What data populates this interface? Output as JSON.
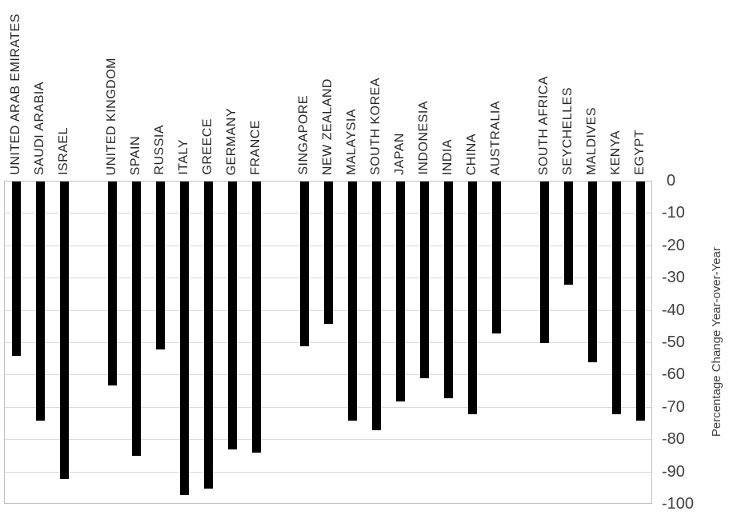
{
  "chart_data": {
    "type": "bar",
    "bar_direction": "vertical-negative",
    "title": "",
    "xlabel": "",
    "ylabel": "Percentage Change Year-over-Year",
    "ylim": [
      -100,
      0
    ],
    "yticks": [
      0,
      -10,
      -20,
      -30,
      -40,
      -50,
      -60,
      -70,
      -80,
      -90,
      -100
    ],
    "grid": true,
    "legend": false,
    "categories": [
      "UNITED ARAB EMIRATES",
      "SAUDI ARABIA",
      "ISRAEL",
      "",
      "UNITED KINGDOM",
      "SPAIN",
      "RUSSIA",
      "ITALY",
      "GREECE",
      "GERMANY",
      "FRANCE",
      "",
      "SINGAPORE",
      "NEW ZEALAND",
      "MALAYSIA",
      "SOUTH KOREA",
      "JAPAN",
      "INDONESIA",
      "INDIA",
      "CHINA",
      "AUSTRALIA",
      "",
      "SOUTH AFRICA",
      "SEYCHELLES",
      "MALDIVES",
      "KENYA",
      "EGYPT"
    ],
    "values": [
      -54,
      -74,
      -92,
      null,
      -63,
      -85,
      -52,
      -97,
      -95,
      -83,
      -84,
      null,
      -51,
      -44,
      -74,
      -77,
      -68,
      -61,
      -67,
      -72,
      -47,
      null,
      -50,
      -32,
      -56,
      -72,
      -74
    ],
    "colors": {
      "bar": "#000000",
      "gridline": "#d9d9d9",
      "plot_border": "#bfbfbf",
      "tick_label": "#404040",
      "category_label": "#262626",
      "axis_title": "#404040"
    }
  }
}
